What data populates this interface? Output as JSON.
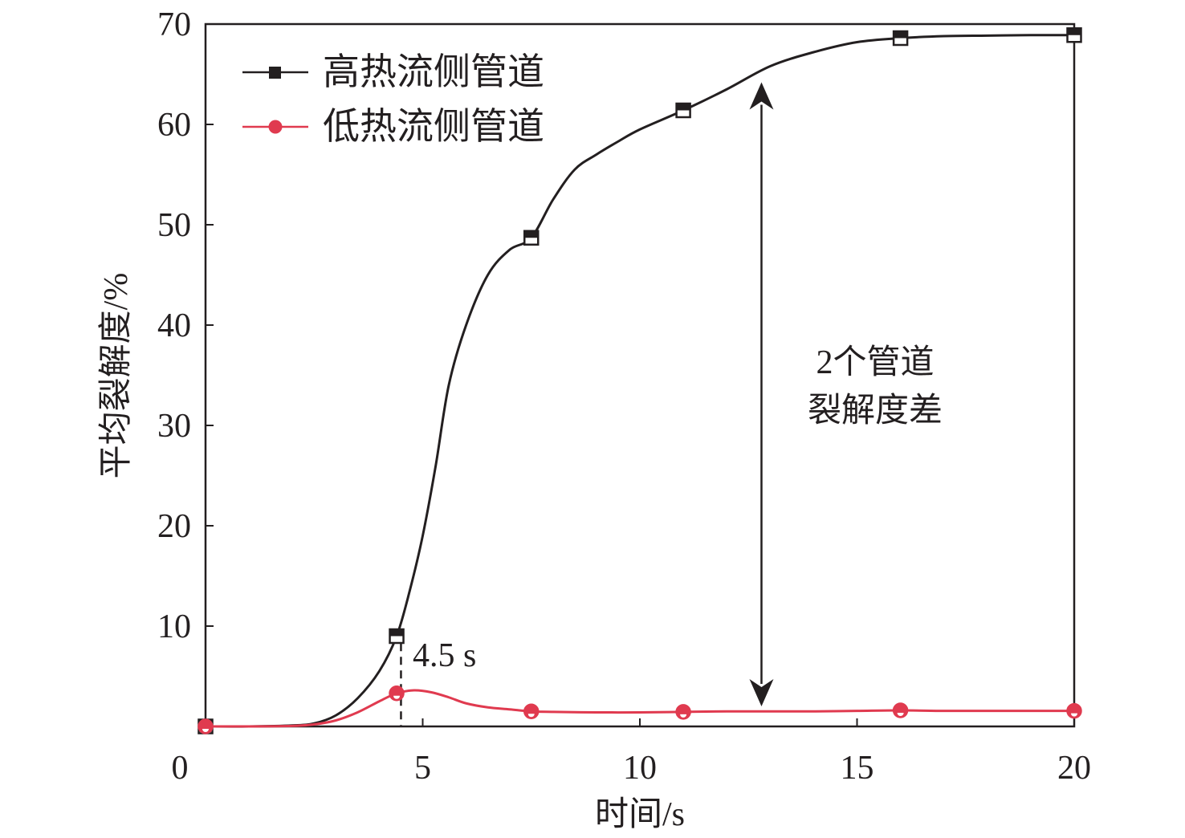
{
  "chart_data": {
    "type": "line",
    "xlabel": "时间/s",
    "ylabel": "平均裂解度/%",
    "xlim": [
      0,
      20
    ],
    "ylim": [
      0,
      70
    ],
    "x_ticks": [
      0,
      5,
      10,
      15,
      20
    ],
    "y_ticks": [
      10,
      20,
      30,
      40,
      50,
      60,
      70
    ],
    "grid": false,
    "legend": "top-left",
    "series": [
      {
        "name": "高热流侧管道",
        "color": "#231f20",
        "marker": "square",
        "marker_x": [
          0,
          4.4,
          7.5,
          11.0,
          16.0,
          20.0
        ],
        "marker_y": [
          0,
          9.0,
          48.7,
          61.4,
          68.6,
          68.9
        ],
        "curve_x": [
          0,
          1,
          2,
          2.5,
          3,
          3.5,
          4,
          4.4,
          4.7,
          5,
          5.3,
          5.6,
          6,
          6.5,
          7,
          7.5,
          8,
          8.5,
          9,
          9.5,
          10,
          11,
          12,
          13,
          14,
          15,
          16,
          17,
          18,
          19,
          20
        ],
        "curve_y": [
          0,
          0,
          0.1,
          0.3,
          1.1,
          2.8,
          5.5,
          9.0,
          13.5,
          19,
          26,
          34,
          40,
          45,
          47.5,
          48.7,
          52.5,
          55.5,
          57.0,
          58.3,
          59.5,
          61.4,
          63.5,
          65.8,
          67.2,
          68.2,
          68.6,
          68.8,
          68.85,
          68.9,
          68.9
        ]
      },
      {
        "name": "低热流侧管道",
        "color": "#e03a4f",
        "marker": "circle",
        "marker_x": [
          0,
          4.4,
          7.5,
          11.0,
          16.0,
          20.0
        ],
        "marker_y": [
          0,
          3.3,
          1.5,
          1.45,
          1.6,
          1.55
        ],
        "curve_x": [
          0,
          1,
          2,
          2.5,
          3,
          3.5,
          4,
          4.4,
          4.8,
          5.2,
          5.6,
          6,
          6.5,
          7,
          7.5,
          8,
          9,
          10,
          11,
          12,
          13,
          14,
          15,
          16,
          17,
          18,
          19,
          20
        ],
        "curve_y": [
          0,
          0,
          0.05,
          0.2,
          0.6,
          1.4,
          2.5,
          3.3,
          3.6,
          3.4,
          2.9,
          2.3,
          1.9,
          1.7,
          1.5,
          1.45,
          1.4,
          1.4,
          1.45,
          1.5,
          1.5,
          1.5,
          1.55,
          1.6,
          1.55,
          1.55,
          1.55,
          1.55
        ]
      }
    ],
    "annotations": {
      "vline_x": 4.5,
      "time_label": "4.5 s",
      "diff_arrow_x": 12.8,
      "diff_label_line1": "2个管道",
      "diff_label_line2": "裂解度差"
    }
  }
}
